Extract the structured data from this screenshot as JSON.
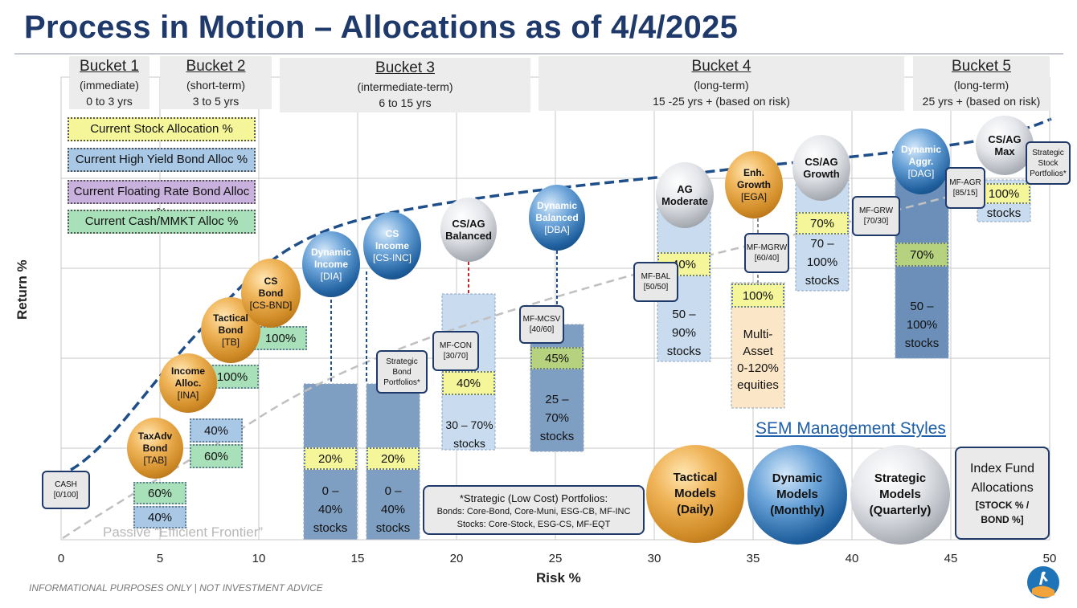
{
  "title": "Process in Motion – Allocations as of 4/4/2025",
  "buckets": [
    {
      "title": "Bucket 1",
      "sub": "(immediate)",
      "range": "0 to 3 yrs"
    },
    {
      "title": "Bucket 2",
      "sub": "(short-term)",
      "range": "3 to 5 yrs"
    },
    {
      "title": "Bucket 3",
      "sub": "(intermediate-term)",
      "range": "6 to 15 yrs"
    },
    {
      "title": "Bucket 4",
      "sub": "(long-term)",
      "range": "15 -25 yrs + (based on risk)"
    },
    {
      "title": "Bucket 5",
      "sub": "(long-term)",
      "range": "25 yrs + (based on risk)"
    }
  ],
  "legend_boxes": {
    "stock": "Current Stock Allocation %",
    "hyb": "Current High Yield Bond Alloc %",
    "frb": "Current Floating Rate Bond Alloc %",
    "cash": "Current Cash/MMKT Alloc %"
  },
  "colors": {
    "stock": "#f5f59a",
    "hyb": "#a9c8e6",
    "frb": "#c9b1dd",
    "cash": "#a8e0b9",
    "title": "#1f3a6a",
    "frontier": "#1f4f8a",
    "passive": "#c0c0c0"
  },
  "chart_data": {
    "type": "scatter",
    "xlabel": "Risk %",
    "ylabel": "Return %",
    "xlim": [
      0,
      50
    ],
    "xticks": [
      0,
      5,
      10,
      15,
      20,
      25,
      30,
      35,
      40,
      45,
      50
    ],
    "grid": true,
    "curves": [
      {
        "name": "Passive “Efficient Frontier”",
        "style": "dashed-gray"
      },
      {
        "name": "",
        "style": "dashed-blue"
      }
    ],
    "strategies": [
      {
        "lines": [
          "CASH",
          "[0/100]"
        ],
        "kind": "mf",
        "x": 1
      },
      {
        "lines": [
          "TaxAdv",
          "Bond",
          "[TAB]"
        ],
        "kind": "tactical",
        "x": 4.8
      },
      {
        "lines": [
          "Income",
          "Alloc.",
          "[INA]"
        ],
        "kind": "tactical",
        "x": 6.4
      },
      {
        "lines": [
          "Tactical",
          "Bond",
          "[TB]"
        ],
        "kind": "tactical",
        "x": 8.6
      },
      {
        "lines": [
          "CS",
          "Bond",
          "[CS-BND]"
        ],
        "kind": "tactical",
        "x": 10.8
      },
      {
        "lines": [
          "Dynamic",
          "Income",
          "[DIA]"
        ],
        "kind": "dynamic",
        "x": 13.7
      },
      {
        "lines": [
          "CS",
          "Income",
          "[CS-INC]"
        ],
        "kind": "dynamic",
        "x": 16.6
      },
      {
        "lines": [
          "Strategic",
          "Bond",
          "Portfolios*"
        ],
        "kind": "mf",
        "x": 17.3
      },
      {
        "lines": [
          "MF-CON",
          "[30/70]"
        ],
        "kind": "mf",
        "x": 19.9
      },
      {
        "lines": [
          "CS/AG",
          "Balanced"
        ],
        "kind": "strategic",
        "x": 20.7
      },
      {
        "lines": [
          "MF-MCSV",
          "[40/60]"
        ],
        "kind": "mf",
        "x": 24.3
      },
      {
        "lines": [
          "Dynamic",
          "Balanced",
          "[DBA]"
        ],
        "kind": "dynamic",
        "x": 25.2
      },
      {
        "lines": [
          "MF-BAL",
          "[50/50]"
        ],
        "kind": "mf",
        "x": 29.8
      },
      {
        "lines": [
          "AG",
          "Moderate"
        ],
        "kind": "strategic",
        "x": 31.5
      },
      {
        "lines": [
          "MF-MGRW",
          "[60/40]"
        ],
        "kind": "mf",
        "x": 35.2
      },
      {
        "lines": [
          "Enh.",
          "Growth",
          "[EGA]"
        ],
        "kind": "tactical",
        "x": 35.2
      },
      {
        "lines": [
          "CS/AG",
          "Growth"
        ],
        "kind": "strategic",
        "x": 38.9
      },
      {
        "lines": [
          "MF-GRW",
          "[70/30]"
        ],
        "kind": "mf",
        "x": 41.8
      },
      {
        "lines": [
          "Dynamic",
          "Aggr.",
          "[DAG]"
        ],
        "kind": "dynamic",
        "x": 43.9
      },
      {
        "lines": [
          "MF-AGR",
          "[85/15]"
        ],
        "kind": "mf",
        "x": 45.2
      },
      {
        "lines": [
          "CS/AG",
          "Max"
        ],
        "kind": "strategic",
        "x": 47.7
      },
      {
        "lines": [
          "Strategic",
          "Stock",
          "Portfolios*"
        ],
        "kind": "mf",
        "x": 49.5
      }
    ],
    "allocations": [
      {
        "strategy": "TAB",
        "cash": "60%",
        "hyb": "40%"
      },
      {
        "strategy": "INA",
        "hyb": "40%",
        "cash": "60%"
      },
      {
        "strategy": "TB",
        "cash": "100%"
      },
      {
        "strategy": "CS-BND",
        "cash": "100%"
      },
      {
        "strategy": "DIA",
        "stock": "20%",
        "range": [
          "0 –",
          "40%",
          "stocks"
        ]
      },
      {
        "strategy": "CS-INC",
        "stock": "20%",
        "range": [
          "0 –",
          "40%",
          "stocks"
        ]
      },
      {
        "strategy": "CS/AG Balanced",
        "stock": "40%",
        "range": [
          "30 – 70%",
          "stocks"
        ]
      },
      {
        "strategy": "DBA",
        "stock": "45%",
        "range": [
          "25 –",
          "70%",
          "stocks"
        ]
      },
      {
        "strategy": "AG Moderate",
        "stock": "40%",
        "range": [
          "50 –",
          "90%",
          "stocks"
        ]
      },
      {
        "strategy": "EGA",
        "stock": "100%",
        "range": [
          "Multi-",
          "Asset",
          "0-120%",
          "equities"
        ]
      },
      {
        "strategy": "CS/AG Growth",
        "stock": "70%",
        "range": [
          "70 –",
          "100%",
          "stocks"
        ]
      },
      {
        "strategy": "DAG",
        "stock": "70%",
        "range": [
          "50 –",
          "100%",
          "stocks"
        ]
      },
      {
        "strategy": "CS/AG Max",
        "stock": "100%",
        "range": [
          "stocks"
        ]
      }
    ]
  },
  "strategic_note": {
    "line1": "*Strategic (Low Cost) Portfolios:",
    "line2": "Bonds: Core-Bond, Core-Muni, ESG-CB, MF-INC",
    "line3": "Stocks: Core-Stock, ESG-CS, MF-EQT"
  },
  "management_styles": {
    "title": "SEM Management Styles",
    "items": [
      {
        "kind": "tactical",
        "lines": [
          "Tactical",
          "Models",
          "(Daily)"
        ]
      },
      {
        "kind": "dynamic",
        "lines": [
          "Dynamic",
          "Models",
          "(Monthly)"
        ]
      },
      {
        "kind": "strategic",
        "lines": [
          "Strategic",
          "Models",
          "(Quarterly)"
        ]
      }
    ],
    "index": {
      "lines": [
        "Index Fund",
        "Allocations",
        "[STOCK % /",
        "BOND %]"
      ]
    }
  },
  "footer": "INFORMATIONAL PURPOSES ONLY | NOT INVESTMENT ADVICE",
  "logo": {
    "name": "sem-logo"
  }
}
